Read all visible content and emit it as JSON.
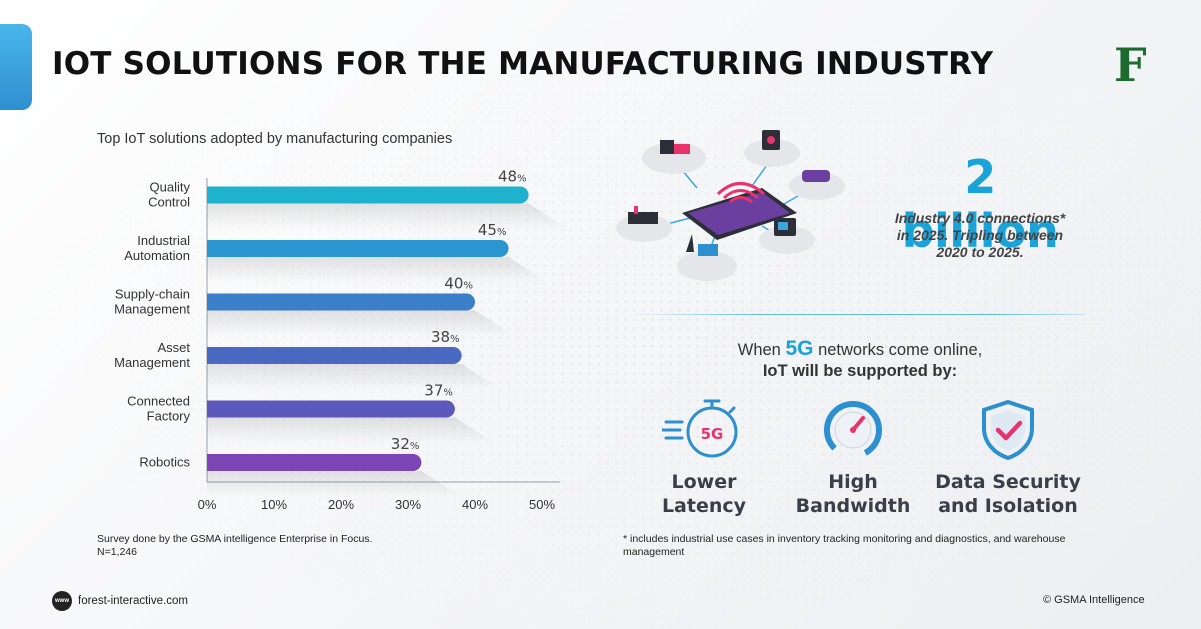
{
  "header": {
    "title": "IOT SOLUTIONS FOR THE MANUFACTURING INDUSTRY",
    "brand_letter": "F"
  },
  "chart_data": {
    "type": "bar",
    "orientation": "horizontal",
    "title": "Top IoT solutions adopted by manufacturing companies",
    "categories": [
      [
        "Quality",
        "Control"
      ],
      [
        "Industrial",
        "Automation"
      ],
      [
        "Supply-chain",
        "Management"
      ],
      [
        "Asset",
        "Management"
      ],
      [
        "Connected",
        "Factory"
      ],
      [
        "Robotics"
      ]
    ],
    "values": [
      48,
      45,
      40,
      38,
      37,
      32
    ],
    "value_labels": [
      "48",
      "45",
      "40",
      "38",
      "37",
      "32"
    ],
    "value_unit": "%",
    "xlim": [
      0,
      50
    ],
    "x_ticks": [
      "0%",
      "10%",
      "20%",
      "30%",
      "40%",
      "50%"
    ],
    "x_tick_values": [
      0,
      10,
      20,
      30,
      40,
      50
    ],
    "bar_colors": [
      "#1fb2cf",
      "#2a95cf",
      "#3a7fc8",
      "#4a69c2",
      "#5e58bc",
      "#7b45b3"
    ],
    "grid": false,
    "legend": "none"
  },
  "survey_note": {
    "line1": "Survey done by the GSMA intelligence Enterprise in Focus.",
    "line2": "N=1,246"
  },
  "stat": {
    "value": "2 billion",
    "description_line1": "Industry 4.0 connections*",
    "description_line2": "in 2025. Tripling between",
    "description_line3": "2020 to 2025."
  },
  "fiveg": {
    "pre": "When",
    "highlight": "5G",
    "post": "networks come online,",
    "line2": "IoT will be supported by:",
    "icon_text": "5G",
    "features": [
      {
        "line1": "Lower",
        "line2": "Latency",
        "icon": "stopwatch-5g-icon"
      },
      {
        "line1": "High",
        "line2": "Bandwidth",
        "icon": "speedometer-icon"
      },
      {
        "line1": "Data Security",
        "line2": "and Isolation",
        "icon": "shield-check-icon"
      }
    ]
  },
  "footnote": "* includes industrial use cases in inventory tracking monitoring and diagnostics, and warehouse management",
  "footer": {
    "www_label": "www",
    "site": "forest-interactive.com",
    "copyright": "© GSMA Intelligence"
  },
  "colors": {
    "accent": "#1aa3d8",
    "title": "#111111",
    "feature_text": "#3a3f47",
    "icon_blue": "#2b8fd0",
    "icon_pink": "#e8336b",
    "brand_green": "#1d6b2e"
  }
}
